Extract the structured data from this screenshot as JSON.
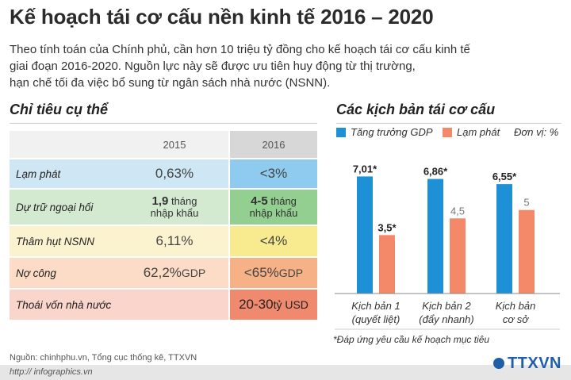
{
  "title": "Kế hoạch tái cơ cấu nền kinh tế 2016 – 2020",
  "intro": [
    "Theo tính toán của Chính phủ, cần hơn 10 triệu tỷ đồng cho kế hoạch tái cơ cấu kinh tế",
    "giai đoạn 2016-2020. Nguồn lực này sẽ được ưu tiên huy động từ thị trường,",
    "hạn chế tối đa việc bổ sung từ ngân sách nhà nước (NSNN)."
  ],
  "table": {
    "title": "Chỉ tiêu cụ thể",
    "col_2015": "2015",
    "col_2016": "2016",
    "rows": [
      {
        "label": "Lạm phát",
        "v2015": "0,63%",
        "v2016": "<3%"
      },
      {
        "label": "Dự trữ ngoại hối",
        "v2015_bold": "1,9",
        "v2015_rest": " tháng",
        "v2015_line2": "nhập khẩu",
        "v2016_bold": "4-5",
        "v2016_rest": " tháng",
        "v2016_line2": "nhập khẩu"
      },
      {
        "label": "Thâm hụt NSNN",
        "v2015": "6,11%",
        "v2016": "<4%"
      },
      {
        "label": "Nợ công",
        "v2015": "62,2%",
        "v2015_unit": " GDP",
        "v2016": "<65%",
        "v2016_unit": " GDP"
      },
      {
        "label": "Thoái vốn nhà nước",
        "v2015": "",
        "v2016": "20-30",
        "v2016_unit": " tỷ USD"
      }
    ],
    "colors": {
      "header_left": "#f1f1f1",
      "header_2016": "#d7d7d7",
      "row_blue": "#cfe6f4",
      "row_blue_2016": "#8ecbee",
      "row_green": "#d3ead1",
      "row_green_2016": "#92cf90",
      "row_yellow": "#fbf3cf",
      "row_yellow_2016": "#f7ea8f",
      "row_orange": "#fcdcc6",
      "row_orange_2016": "#f7b187",
      "row_red": "#f9d5cb",
      "row_red_2016": "#f08a6f"
    }
  },
  "chart_data": {
    "type": "bar",
    "title": "Các kịch bản tái cơ cấu",
    "unit": "Đơn vị: %",
    "categories": [
      [
        "Kịch bản 1",
        "(quyết liệt)"
      ],
      [
        "Kịch bản 2",
        "(đẩy nhanh)"
      ],
      [
        "Kịch bản",
        "cơ sở"
      ]
    ],
    "series": [
      {
        "name": "Tăng trưởng GDP",
        "color": "#1e90d6",
        "values": [
          7.01,
          6.86,
          6.55
        ],
        "labels": [
          "7,01*",
          "6,86*",
          "6,55*"
        ]
      },
      {
        "name": "Lạm phát",
        "color": "#f4896a",
        "values": [
          3.5,
          4.5,
          5
        ],
        "labels": [
          "3,5*",
          "4,5",
          "5"
        ]
      }
    ],
    "ylim": [
      0,
      7.6
    ],
    "note": "*Đáp ứng yêu cầu kế hoạch mục tiêu"
  },
  "source": "Nguồn: chinhphu.vn, Tổng cục thống kê, TTXVN",
  "site": "http:// infographics.vn",
  "logo": "TTXVN"
}
